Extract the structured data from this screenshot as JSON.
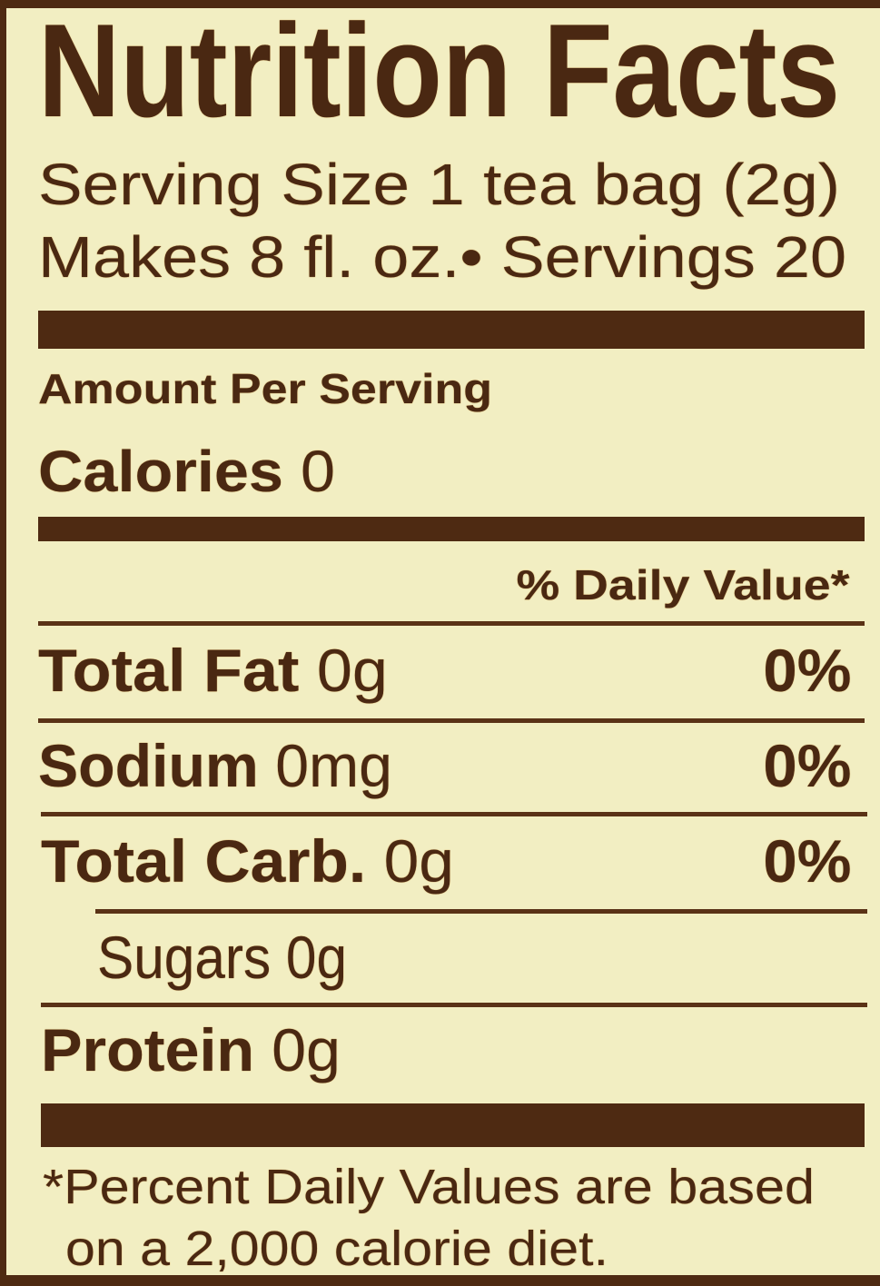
{
  "label": {
    "title": "Nutrition Facts",
    "serving_size": "Serving Size 1 tea bag (2g)",
    "servings_line": "Makes 8 fl. oz.• Servings 20",
    "amount_per_serving": "Amount Per Serving",
    "calories": {
      "label": "Calories",
      "value": "0"
    },
    "daily_value_header": "% Daily Value*",
    "nutrients": [
      {
        "label": "Total Fat",
        "amount": "0g",
        "dv": "0%"
      },
      {
        "label": "Sodium",
        "amount": "0mg",
        "dv": "0%"
      },
      {
        "label": "Total Carb.",
        "amount": "0g",
        "dv": "0%"
      },
      {
        "label": "Sugars",
        "amount": "0g"
      },
      {
        "label": "Protein",
        "amount": "0g"
      }
    ],
    "footnote_line1": "*Percent Daily Values are based",
    "footnote_line2": "on a 2,000 calorie diet."
  },
  "colors": {
    "ink": "#4a2812",
    "background": "#f2eec2"
  }
}
